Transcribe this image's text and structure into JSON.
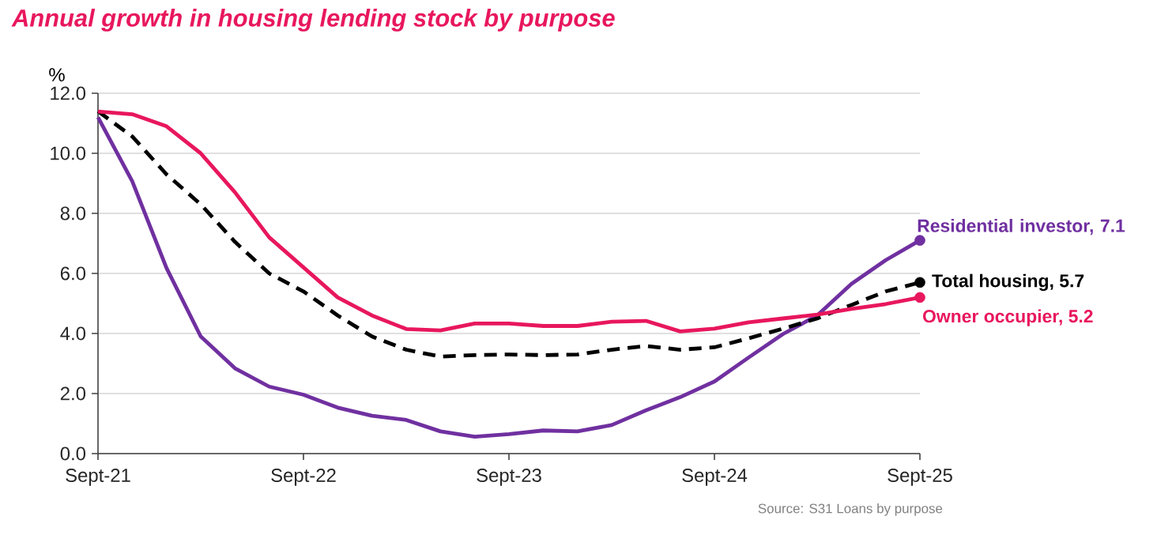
{
  "chart_data": {
    "type": "line",
    "title": "Annual growth in housing lending stock by purpose",
    "ylabel": "%",
    "x": [
      "2021-09",
      "2021-11",
      "2022-01",
      "2022-03",
      "2022-05",
      "2022-07",
      "2022-09",
      "2022-11",
      "2023-01",
      "2023-03",
      "2023-05",
      "2023-07",
      "2023-09",
      "2023-11",
      "2024-01",
      "2024-03",
      "2024-05",
      "2024-07",
      "2024-09",
      "2024-11",
      "2025-01",
      "2025-03",
      "2025-05",
      "2025-07",
      "2025-09"
    ],
    "series": [
      {
        "color": "#7030a0",
        "line_style": "solid",
        "values": [
          11.2,
          9.07,
          6.18,
          3.9,
          2.84,
          2.23,
          1.96,
          1.53,
          1.26,
          1.12,
          0.74,
          0.56,
          0.65,
          0.77,
          0.74,
          0.95,
          1.44,
          1.88,
          2.4,
          3.2,
          3.98,
          4.6,
          5.65,
          6.44,
          7.1
        ]
      },
      {
        "color": "#000000",
        "line_style": "dashed",
        "values": [
          11.4,
          10.56,
          9.3,
          8.3,
          7.05,
          6.0,
          5.4,
          4.6,
          3.9,
          3.46,
          3.23,
          3.28,
          3.3,
          3.28,
          3.3,
          3.46,
          3.58,
          3.46,
          3.54,
          3.84,
          4.16,
          4.5,
          4.95,
          5.4,
          5.7
        ]
      },
      {
        "color": "#e8175d",
        "line_style": "solid",
        "values": [
          11.39,
          11.3,
          10.9,
          10.0,
          8.7,
          7.2,
          6.2,
          5.2,
          4.6,
          4.15,
          4.1,
          4.33,
          4.33,
          4.25,
          4.25,
          4.39,
          4.42,
          4.07,
          4.16,
          4.37,
          4.5,
          4.63,
          4.82,
          4.98,
          5.2
        ]
      }
    ],
    "xlim": [
      "2021-09",
      "2025-09"
    ],
    "xticks": [
      {
        "value": "2021-09",
        "label": "Sept-21"
      },
      {
        "value": "2022-09",
        "label": "Sept-22"
      },
      {
        "value": "2023-09",
        "label": "Sept-23"
      },
      {
        "value": "2024-09",
        "label": "Sept-24"
      },
      {
        "value": "2025-09",
        "label": "Sept-25"
      }
    ],
    "ylim": [
      0,
      12
    ],
    "yticks": [
      {
        "value": 0,
        "label": "0.0"
      },
      {
        "value": 2,
        "label": "2.0"
      },
      {
        "value": 4,
        "label": "4.0"
      },
      {
        "value": 6,
        "label": "6.0"
      },
      {
        "value": 8,
        "label": "8.0"
      },
      {
        "value": 10,
        "label": "10.0"
      },
      {
        "value": 12,
        "label": "12.0"
      }
    ],
    "grid": "y",
    "annotations": [
      {
        "text": "Residential investor,  7.1",
        "x": "2025-09",
        "y": 7.1
      },
      {
        "text": "Total housing,  5.7",
        "x": "2025-09",
        "y": 5.7
      },
      {
        "text": "Owner occupier,  5.2",
        "x": "2025-09",
        "y": 5.2
      },
      "Source: S31 Loans by purpose"
    ]
  }
}
